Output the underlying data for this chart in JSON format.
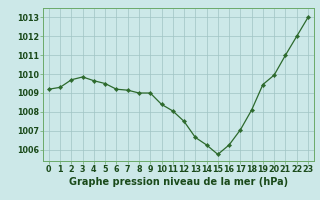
{
  "x": [
    0,
    1,
    2,
    3,
    4,
    5,
    6,
    7,
    8,
    9,
    10,
    11,
    12,
    13,
    14,
    15,
    16,
    17,
    18,
    19,
    20,
    21,
    22,
    23
  ],
  "y": [
    1009.2,
    1009.3,
    1009.7,
    1009.85,
    1009.65,
    1009.5,
    1009.2,
    1009.15,
    1009.0,
    1009.0,
    1008.4,
    1008.05,
    1007.5,
    1006.65,
    1006.25,
    1005.75,
    1006.25,
    1007.05,
    1008.1,
    1009.45,
    1009.95,
    1011.0,
    1012.0,
    1013.0
  ],
  "line_color": "#2d6a2d",
  "marker_color": "#2d6a2d",
  "bg_color": "#cce8e8",
  "grid_color": "#a0c4c4",
  "axis_label_color": "#1a4a1a",
  "title": "Graphe pression niveau de la mer (hPa)",
  "yticks": [
    1006,
    1007,
    1008,
    1009,
    1010,
    1011,
    1012,
    1013
  ],
  "xticks": [
    0,
    1,
    2,
    3,
    4,
    5,
    6,
    7,
    8,
    9,
    10,
    11,
    12,
    13,
    14,
    15,
    16,
    17,
    18,
    19,
    20,
    21,
    22,
    23
  ],
  "ylim": [
    1005.4,
    1013.5
  ],
  "xlim": [
    -0.5,
    23.5
  ],
  "tick_fontsize": 5.8,
  "label_fontsize": 7.0
}
